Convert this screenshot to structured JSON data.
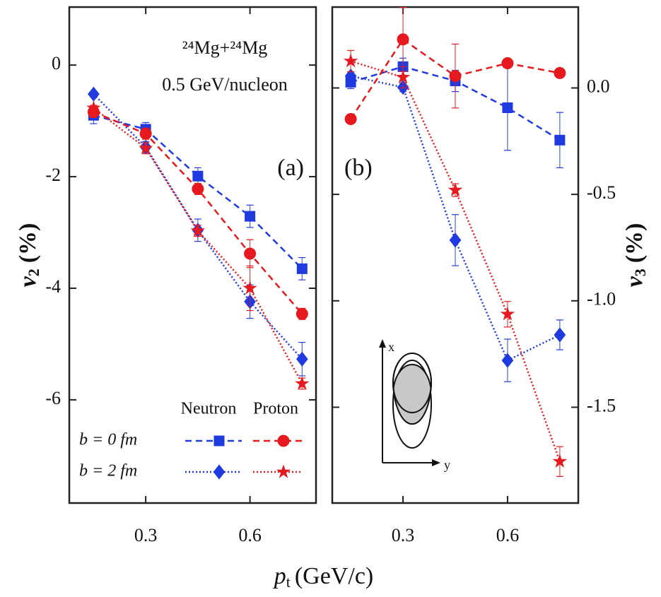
{
  "chart_data": [
    {
      "type": "line",
      "panel_label": "(a)",
      "annotation_lines": [
        "²⁴Mg+²⁴Mg",
        "0.5 GeV/nucleon"
      ],
      "ylabel": {
        "symbol": "v",
        "sub": "2",
        "unit": "(%)"
      },
      "xlabel": {
        "symbol": "p",
        "sub": "t",
        "unit": "(GeV/c)"
      },
      "legend": {
        "columns": [
          "Neutron",
          "Proton"
        ],
        "rows": [
          "b = 0 fm",
          "b = 2 fm"
        ]
      },
      "x": [
        0.15,
        0.3,
        0.45,
        0.6,
        0.75
      ],
      "xlim": [
        0.08,
        0.79
      ],
      "xticks": [
        0.3,
        0.6
      ],
      "ylim": [
        -7.85,
        1.04
      ],
      "yticks": [
        0,
        -2,
        -4,
        -6
      ],
      "series": [
        {
          "color": "#1f3be0",
          "marker": "square",
          "linestyle": "dashed",
          "values": [
            -0.9,
            -1.15,
            -1.99,
            -2.71,
            -3.65
          ],
          "errors": [
            0.15,
            0.12,
            0.15,
            0.2,
            0.2
          ]
        },
        {
          "color": "#1f3be0",
          "marker": "diamond",
          "linestyle": "dotted",
          "values": [
            -0.52,
            -1.47,
            -2.96,
            -4.24,
            -5.27
          ],
          "errors": [
            0.05,
            0.1,
            0.2,
            0.3,
            0.3
          ]
        },
        {
          "color": "#e5191e",
          "marker": "circle",
          "linestyle": "dashed",
          "values": [
            -0.84,
            -1.23,
            -2.22,
            -3.38,
            -4.46
          ],
          "errors": [
            0.1,
            0.1,
            0.1,
            0.25,
            0.1
          ]
        },
        {
          "color": "#e5191e",
          "marker": "star",
          "linestyle": "dotted",
          "values": [
            -0.77,
            -1.49,
            -2.97,
            -4.0,
            -5.71
          ],
          "errors": [
            0.05,
            0.1,
            0.1,
            0.4,
            0.1
          ]
        }
      ]
    },
    {
      "type": "line",
      "panel_label": "(b)",
      "ylabel": {
        "symbol": "v",
        "sub": "3",
        "unit": "(%)"
      },
      "inset": {
        "x_label": "x",
        "y_label": "y"
      },
      "x": [
        0.15,
        0.3,
        0.45,
        0.6,
        0.75
      ],
      "xlim": [
        0.097,
        0.803
      ],
      "xticks": [
        0.3,
        0.6
      ],
      "ylim": [
        -1.95,
        0.38
      ],
      "yticks": [
        {
          "value": 0,
          "label": "0.0"
        },
        -0.5,
        {
          "value": -1,
          "label": "-1.0"
        },
        -1.5
      ],
      "series": [
        {
          "color": "#1f3be0",
          "marker": "square",
          "linestyle": "dashed",
          "values": [
            0.027,
            0.1,
            0.033,
            -0.093,
            -0.245
          ],
          "errors": [
            0.03,
            0.04,
            0.05,
            0.2,
            0.13
          ]
        },
        {
          "color": "#1f3be0",
          "marker": "diamond",
          "linestyle": "dotted",
          "values": [
            0.056,
            0.003,
            -0.715,
            -1.28,
            -1.16
          ],
          "errors": [
            0.02,
            0.02,
            0.12,
            0.1,
            0.07
          ]
        },
        {
          "color": "#e5191e",
          "marker": "circle",
          "linestyle": "dashed",
          "values": [
            -0.146,
            0.228,
            0.056,
            0.116,
            0.07
          ],
          "errors": [
            0.01,
            0.15,
            0.15,
            0.01,
            0.01
          ]
        },
        {
          "color": "#e5191e",
          "marker": "star",
          "linestyle": "dotted",
          "values": [
            0.126,
            0.05,
            -0.48,
            -1.063,
            -1.755
          ],
          "errors": [
            0.05,
            0.05,
            0.03,
            0.06,
            0.07
          ]
        }
      ]
    }
  ]
}
